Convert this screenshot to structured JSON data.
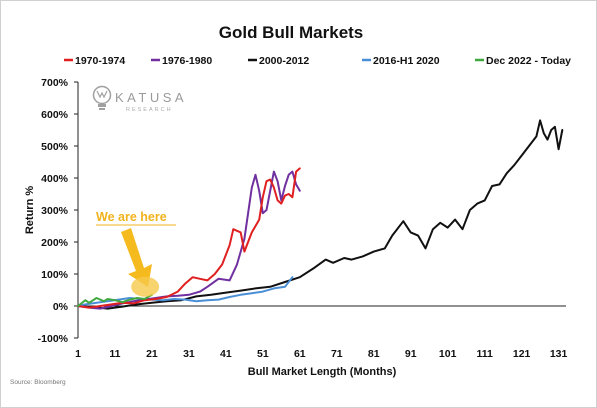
{
  "chart_data": {
    "type": "line",
    "title": "Gold Bull Markets",
    "xlabel": "Bull Market Length (Months)",
    "ylabel": "Return %",
    "xlim": [
      1,
      133
    ],
    "ylim": [
      -100,
      700
    ],
    "xticks": [
      1,
      11,
      21,
      31,
      41,
      51,
      61,
      71,
      81,
      91,
      101,
      111,
      121,
      131
    ],
    "xtick_labels": [
      "1",
      "11",
      "21",
      "31",
      "41",
      "51",
      "61",
      "71",
      "81",
      "91",
      "101",
      "111",
      "121",
      "131"
    ],
    "yticks": [
      -100,
      0,
      100,
      200,
      300,
      400,
      500,
      600,
      700
    ],
    "ytick_labels": [
      "-100%",
      "0%",
      "100%",
      "200%",
      "300%",
      "400%",
      "500%",
      "600%",
      "700%"
    ],
    "grid": false,
    "legend_position": "top",
    "series": [
      {
        "name": "1970-1974",
        "color": "#e02020",
        "x": [
          1,
          4,
          7,
          10,
          13,
          16,
          19,
          22,
          25,
          28,
          30,
          32,
          34,
          36,
          38,
          40,
          42,
          43,
          45,
          46,
          48,
          50,
          51,
          52,
          53,
          54,
          55,
          56,
          57,
          58,
          59,
          60,
          61
        ],
        "y": [
          0,
          -5,
          0,
          5,
          10,
          8,
          18,
          22,
          28,
          45,
          70,
          90,
          85,
          80,
          100,
          130,
          190,
          240,
          230,
          170,
          230,
          270,
          340,
          390,
          395,
          370,
          330,
          320,
          345,
          350,
          340,
          420,
          430
        ]
      },
      {
        "name": "1976-1980",
        "color": "#7030a0",
        "x": [
          1,
          4,
          7,
          10,
          13,
          16,
          19,
          22,
          25,
          28,
          31,
          34,
          36,
          39,
          42,
          44,
          46,
          47,
          48,
          49,
          50,
          51,
          52,
          53,
          54,
          55,
          56,
          57,
          58,
          59,
          60,
          61
        ],
        "y": [
          0,
          -5,
          -8,
          0,
          8,
          15,
          20,
          25,
          30,
          32,
          35,
          45,
          60,
          85,
          80,
          130,
          210,
          290,
          370,
          410,
          360,
          290,
          300,
          360,
          420,
          390,
          330,
          375,
          410,
          420,
          380,
          360
        ]
      },
      {
        "name": "2000-2012",
        "color": "#111111",
        "x": [
          1,
          5,
          9,
          13,
          17,
          21,
          25,
          29,
          33,
          37,
          41,
          45,
          49,
          53,
          57,
          61,
          65,
          68,
          70,
          73,
          75,
          78,
          81,
          84,
          86,
          89,
          91,
          93,
          95,
          97,
          99,
          101,
          103,
          105,
          107,
          109,
          111,
          113,
          115,
          117,
          119,
          121,
          123,
          125,
          126,
          127,
          128,
          129,
          130,
          131,
          132
        ],
        "y": [
          0,
          -3,
          -8,
          -2,
          5,
          10,
          15,
          18,
          30,
          35,
          42,
          48,
          55,
          60,
          75,
          90,
          120,
          145,
          135,
          150,
          145,
          155,
          170,
          180,
          220,
          265,
          230,
          220,
          180,
          240,
          260,
          245,
          270,
          240,
          300,
          320,
          330,
          375,
          380,
          415,
          440,
          470,
          500,
          530,
          580,
          540,
          520,
          550,
          560,
          490,
          550
        ]
      },
      {
        "name": "2016-H1 2020",
        "color": "#4a8fd6",
        "x": [
          1,
          3,
          6,
          9,
          12,
          15,
          18,
          21,
          24,
          27,
          30,
          33,
          36,
          39,
          42,
          45,
          48,
          51,
          54,
          57,
          59
        ],
        "y": [
          0,
          5,
          10,
          15,
          20,
          25,
          22,
          20,
          18,
          22,
          20,
          15,
          18,
          20,
          28,
          35,
          40,
          45,
          55,
          60,
          90
        ]
      },
      {
        "name": "Dec 2022 - Today",
        "color": "#3fa83f",
        "x": [
          1,
          3,
          4,
          6,
          8,
          9,
          11,
          13,
          15,
          17,
          19,
          21
        ],
        "y": [
          0,
          18,
          10,
          25,
          15,
          22,
          18,
          12,
          20,
          25,
          22,
          35
        ]
      }
    ],
    "annotations": [
      {
        "text": "We are here",
        "x": 17,
        "y": 35,
        "color": "#f0b31d"
      }
    ]
  },
  "logo": {
    "name": "KATUSA",
    "subtitle": "RESEARCH",
    "icon": "lightbulb-icon"
  },
  "source": "Source: Bloomberg"
}
